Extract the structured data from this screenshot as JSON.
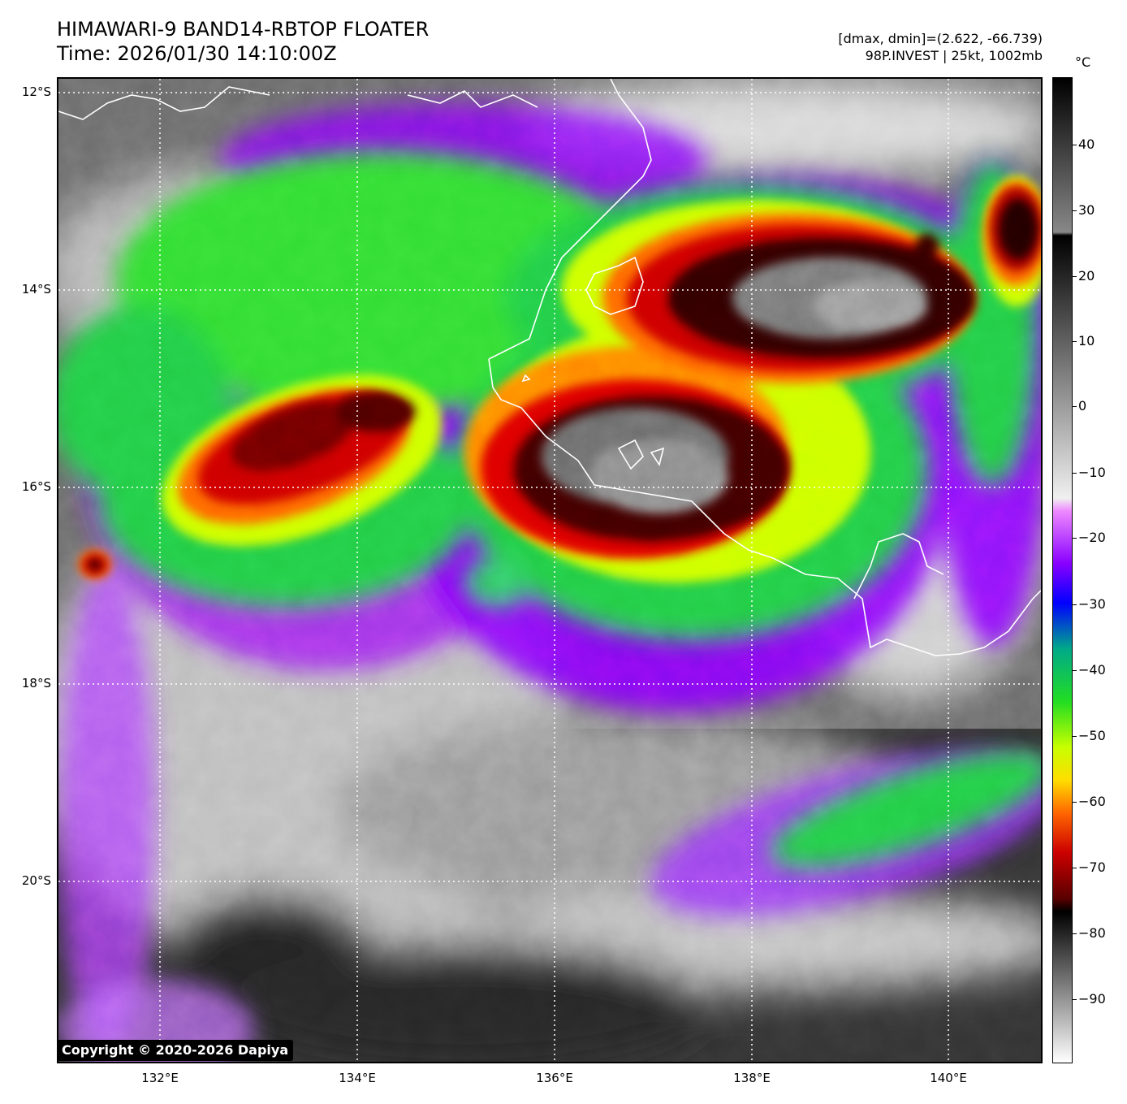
{
  "header": {
    "title_line1": "HIMAWARI-9 BAND14-RBTOP FLOATER",
    "title_line2": "Time: 2026/01/30 14:10:00Z",
    "info_line1": "[dmax, dmin]=(2.622, -66.739)",
    "info_line2": "98P.INVEST | 25kt, 1002mb"
  },
  "map": {
    "lat_labels": [
      "12°S",
      "14°S",
      "16°S",
      "18°S",
      "20°S"
    ],
    "lon_labels": [
      "132°E",
      "134°E",
      "136°E",
      "138°E",
      "140°E"
    ],
    "gridlines": "dotted white",
    "coastline_color": "#ffffff"
  },
  "colorbar": {
    "unit": "°C",
    "tick_labels": [
      "40",
      "30",
      "20",
      "10",
      "0",
      "−10",
      "−20",
      "−30",
      "−40",
      "−50",
      "−60",
      "−70",
      "−80",
      "−90"
    ],
    "range": [
      -100,
      50
    ],
    "stops": [
      {
        "t": -100,
        "color": "#ffffff"
      },
      {
        "t": -77,
        "color": "#000000"
      },
      {
        "t": -75,
        "color": "#5a0000"
      },
      {
        "t": -68,
        "color": "#cc0000"
      },
      {
        "t": -62,
        "color": "#ff6600"
      },
      {
        "t": -57,
        "color": "#ffdd00"
      },
      {
        "t": -52,
        "color": "#c8ff00"
      },
      {
        "t": -45,
        "color": "#22dd22"
      },
      {
        "t": -37,
        "color": "#00aa88"
      },
      {
        "t": -30,
        "color": "#0000ff"
      },
      {
        "t": -24,
        "color": "#8800ff"
      },
      {
        "t": -16,
        "color": "#ee88ff"
      },
      {
        "t": -14,
        "color": "#f0f0f0"
      },
      {
        "t": 26,
        "color": "#000000"
      },
      {
        "t": 26.5,
        "color": "#888888"
      },
      {
        "t": 50,
        "color": "#000000"
      }
    ]
  },
  "copyright": "Copyright © 2020-2026 Dapiya"
}
